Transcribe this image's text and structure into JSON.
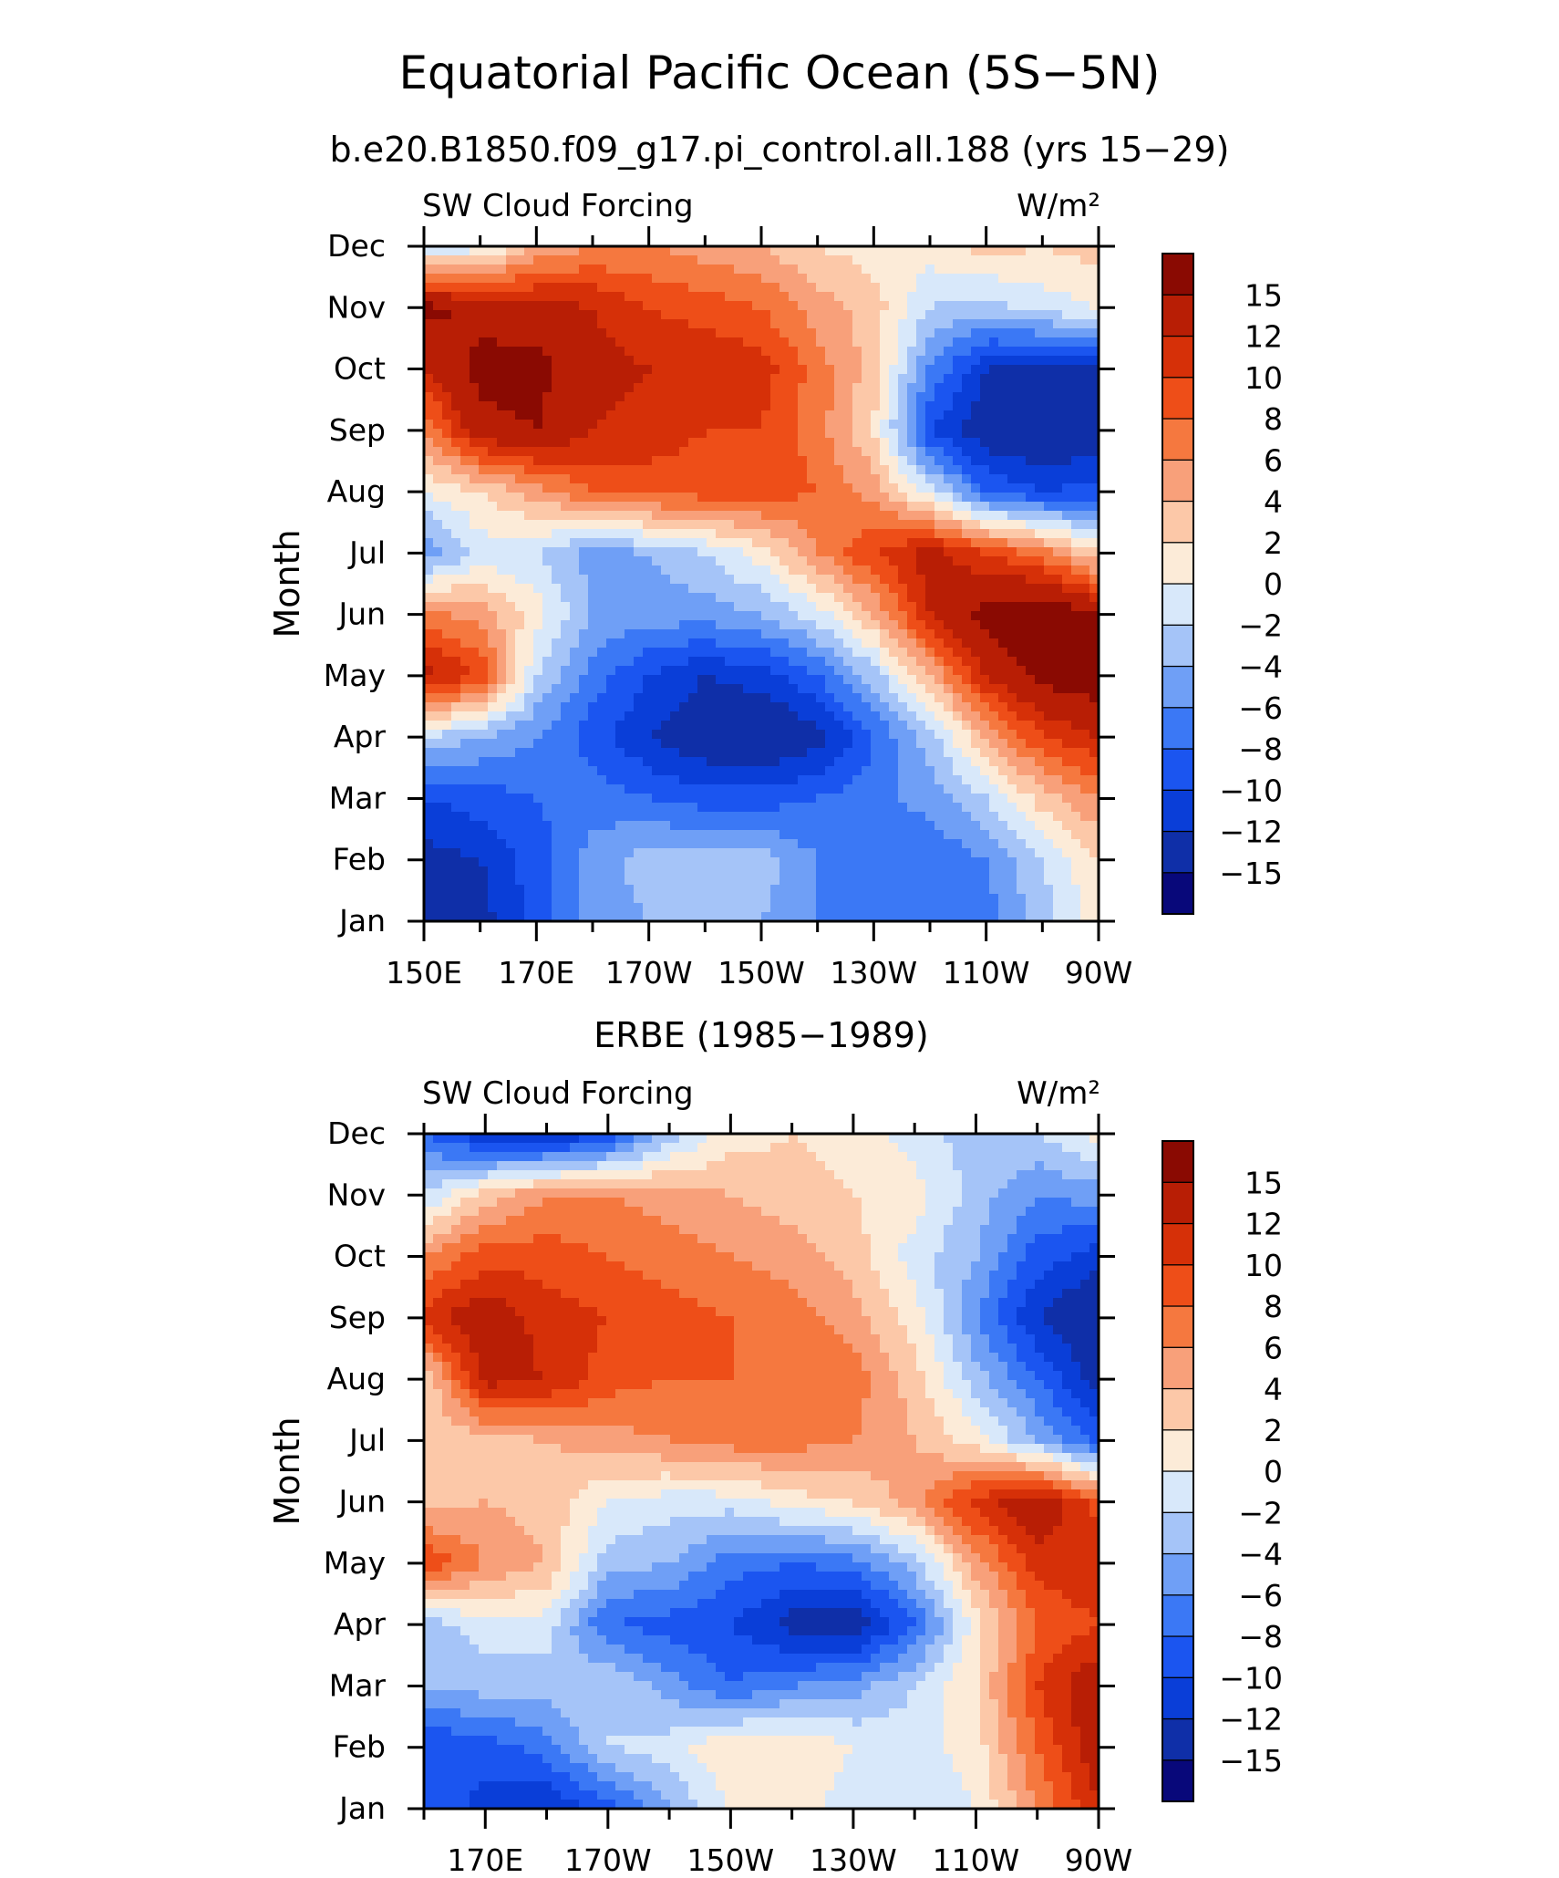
{
  "figure": {
    "title": "Equatorial Pacific Ocean (5S−5N)"
  },
  "colorbar_colors": [
    "#08087a",
    "#0f2fa8",
    "#0a3ed8",
    "#1b55f0",
    "#3b78f5",
    "#6f9ff6",
    "#a5c4f8",
    "#d8e8fa",
    "#fcebd8",
    "#fcc8a8",
    "#f8a07a",
    "#f5783f",
    "#ee4e18",
    "#d63008",
    "#b81e05",
    "#8a0a02"
  ],
  "chart_data": [
    {
      "type": "heatmap",
      "title": "b.e20.B1850.f09_g17.pi_control.all.188 (yrs 15−29)",
      "left_label": "SW Cloud Forcing",
      "right_label": "W/m²",
      "ylabel": "Month",
      "x_ticks": [
        "150E",
        "170E",
        "170W",
        "150W",
        "130W",
        "110W",
        "90W"
      ],
      "y_ticks": [
        "Jan",
        "Feb",
        "Mar",
        "Apr",
        "May",
        "Jun",
        "Jul",
        "Aug",
        "Sep",
        "Oct",
        "Nov",
        "Dec"
      ],
      "colorbar_labels": [
        "15",
        "12",
        "10",
        "8",
        "6",
        "4",
        "2",
        "0",
        "−2",
        "−4",
        "−6",
        "−8",
        "−10",
        "−12",
        "−15"
      ],
      "grid_x": [
        "150E",
        "160E",
        "170E",
        "180",
        "170W",
        "160W",
        "150W",
        "140W",
        "130W",
        "120W",
        "110W",
        "100W",
        "90W"
      ],
      "values": [
        [
          -14,
          -13,
          -9,
          -5,
          -4,
          -3,
          -4,
          -6,
          -8,
          -8,
          -7,
          -3,
          1
        ],
        [
          -13,
          -12,
          -9,
          -5,
          -3,
          -3,
          -3,
          -6,
          -8,
          -8,
          -6,
          -2,
          2
        ],
        [
          -10,
          -9,
          -8,
          -7,
          -8,
          -9,
          -9,
          -8,
          -7,
          -5,
          -2,
          3,
          6
        ],
        [
          -2,
          -4,
          -6,
          -9,
          -12,
          -14,
          -15,
          -13,
          -8,
          -3,
          4,
          10,
          12
        ],
        [
          13,
          10,
          -2,
          -7,
          -10,
          -12,
          -11,
          -8,
          -3,
          4,
          12,
          16,
          17
        ],
        [
          7,
          5,
          1,
          -4,
          -5,
          -5,
          -4,
          -1,
          4,
          12,
          16,
          18,
          15
        ],
        [
          -6,
          -1,
          -2,
          -5,
          -4,
          -2,
          1,
          6,
          10,
          13,
          10,
          7,
          2
        ],
        [
          0,
          2,
          5,
          8,
          9,
          9,
          9,
          8,
          5,
          -1,
          -8,
          -10,
          -9
        ],
        [
          6,
          14,
          15,
          12,
          11,
          10,
          10,
          7,
          2,
          -10,
          -14,
          -15,
          -14
        ],
        [
          12,
          16,
          16,
          13,
          12,
          12,
          11,
          7,
          3,
          -6,
          -12,
          -13,
          -13
        ],
        [
          16,
          14,
          13,
          12,
          10,
          9,
          8,
          5,
          3,
          -2,
          -3,
          -1,
          0
        ],
        [
          -2,
          -1,
          4,
          6,
          6,
          5,
          4,
          2,
          1,
          1,
          3,
          2,
          3
        ]
      ]
    },
    {
      "type": "heatmap",
      "title": "ERBE (1985−1989)",
      "left_label": "SW Cloud Forcing",
      "right_label": "W/m²",
      "ylabel": "Month",
      "x_ticks": [
        "170E",
        "170W",
        "150W",
        "130W",
        "110W",
        "90W"
      ],
      "y_ticks": [
        "Jan",
        "Feb",
        "Mar",
        "Apr",
        "May",
        "Jun",
        "Jul",
        "Aug",
        "Sep",
        "Oct",
        "Nov",
        "Dec"
      ],
      "colorbar_labels": [
        "15",
        "12",
        "10",
        "8",
        "6",
        "4",
        "2",
        "0",
        "−2",
        "−4",
        "−6",
        "−8",
        "−10",
        "−12",
        "−15"
      ],
      "grid_x": [
        "",
        "170E",
        "180",
        "170W",
        "160W",
        "150W",
        "140W",
        "130W",
        "120W",
        "110W",
        "100W",
        "90W"
      ],
      "values": [
        [
          -8,
          -11,
          -12,
          -9,
          -4,
          0,
          1,
          -1,
          -2,
          0,
          6,
          12
        ],
        [
          -10,
          -9,
          -7,
          -2,
          -1,
          2,
          2,
          0,
          -1,
          1,
          8,
          14
        ],
        [
          -4,
          -3,
          -3,
          -2,
          -5,
          -8,
          -6,
          -5,
          -2,
          2,
          10,
          14
        ],
        [
          -3,
          -1,
          -1,
          -8,
          -9,
          -10,
          -13,
          -14,
          -8,
          1,
          8,
          10
        ],
        [
          10,
          6,
          4,
          -3,
          -4,
          -7,
          -8,
          -7,
          -3,
          5,
          11,
          12
        ],
        [
          3,
          4,
          3,
          0,
          -1,
          -1,
          1,
          2,
          5,
          11,
          14,
          9
        ],
        [
          2,
          3,
          4,
          5,
          6,
          7,
          7,
          6,
          4,
          1,
          -4,
          -9
        ],
        [
          2,
          13,
          12,
          9,
          8,
          8,
          8,
          7,
          3,
          -3,
          -8,
          -13
        ],
        [
          11,
          14,
          11,
          10,
          9,
          8,
          7,
          5,
          1,
          -6,
          -12,
          -15
        ],
        [
          6,
          9,
          9,
          8,
          7,
          6,
          5,
          3,
          -1,
          -4,
          -9,
          -11
        ],
        [
          -2,
          3,
          6,
          6,
          5,
          4,
          3,
          2,
          1,
          -3,
          -6,
          -5
        ],
        [
          -8,
          -12,
          -13,
          -10,
          -3,
          1,
          2,
          1,
          -1,
          -3,
          -2,
          1
        ]
      ]
    }
  ]
}
